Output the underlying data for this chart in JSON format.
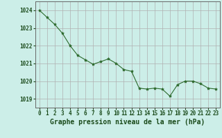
{
  "x": [
    0,
    1,
    2,
    3,
    4,
    5,
    6,
    7,
    8,
    9,
    10,
    11,
    12,
    13,
    14,
    15,
    16,
    17,
    18,
    19,
    20,
    21,
    22,
    23
  ],
  "y": [
    1024.0,
    1023.6,
    1023.2,
    1022.7,
    1022.0,
    1021.45,
    1021.2,
    1020.95,
    1021.1,
    1021.25,
    1021.0,
    1020.65,
    1020.55,
    1019.6,
    1019.55,
    1019.6,
    1019.55,
    1019.15,
    1019.8,
    1020.0,
    1020.0,
    1019.85,
    1019.6,
    1019.55
  ],
  "ylim": [
    1018.5,
    1024.5
  ],
  "yticks": [
    1019,
    1020,
    1021,
    1022,
    1023,
    1024
  ],
  "xticks": [
    0,
    1,
    2,
    3,
    4,
    5,
    6,
    7,
    8,
    9,
    10,
    11,
    12,
    13,
    14,
    15,
    16,
    17,
    18,
    19,
    20,
    21,
    22,
    23
  ],
  "xlabel": "Graphe pression niveau de la mer (hPa)",
  "line_color": "#2d6a2d",
  "marker": "*",
  "marker_size": 3,
  "bg_color": "#cceee8",
  "grid_color": "#b0b0b0",
  "axis_color": "#666666",
  "label_color": "#1a4a1a",
  "tick_fontsize": 5.5,
  "xlabel_fontsize": 7.0
}
